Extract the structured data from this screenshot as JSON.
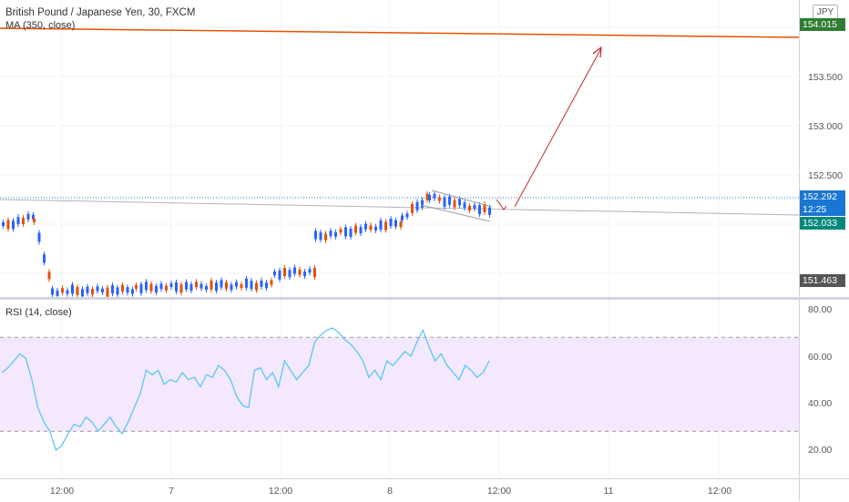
{
  "symbol_title": "British Pound / Japanese Yen, 30, FXCM",
  "ma_label": "MA (350, close)",
  "rsi_label": "RSI (14, close)",
  "currency": "JPY",
  "price_ticks": [
    "153.500",
    "153.000",
    "152.500"
  ],
  "price_tags": {
    "ma": "154.015",
    "last": "152.292",
    "countdown": "12:25",
    "trendline": "152.033",
    "low": "151.463"
  },
  "rsi_ticks": [
    "80.00",
    "60.00",
    "40.00",
    "20.00"
  ],
  "time_ticks": [
    "12:00",
    "7",
    "12:00",
    "8",
    "12:00",
    "11",
    "12:00"
  ],
  "colors": {
    "up": "#2962ff",
    "down": "#e65100",
    "ma": "#e65100",
    "rsi_line": "#4fc3f7",
    "rsi_band": "#f3e8fd",
    "last_price": "#1976d2",
    "trendline_tag": "#00897b",
    "arrow": "#c62828"
  },
  "chart_data": {
    "type": "candlestick",
    "price_range": [
      151.3,
      154.3
    ],
    "rsi_range": [
      10,
      86
    ],
    "rsi_band": [
      30,
      70
    ],
    "rsi_values": [
      55,
      57,
      60,
      63,
      61,
      52,
      40,
      34,
      30,
      22,
      24,
      29,
      33,
      32,
      36,
      34,
      30,
      33,
      36,
      32,
      29,
      34,
      40,
      46,
      56,
      54,
      56,
      50,
      52,
      51,
      55,
      52,
      53,
      49,
      54,
      53,
      58,
      56,
      52,
      45,
      41,
      40,
      56,
      57,
      52,
      55,
      49,
      60,
      56,
      52,
      55,
      58,
      68,
      71,
      73,
      74,
      72,
      69,
      67,
      64,
      60,
      53,
      56,
      52,
      60,
      58,
      61,
      64,
      62,
      68,
      73,
      66,
      60,
      63,
      58,
      55,
      52,
      58,
      56,
      53,
      55,
      60
    ],
    "ma_value": 154.015,
    "last_price": 152.292
  }
}
